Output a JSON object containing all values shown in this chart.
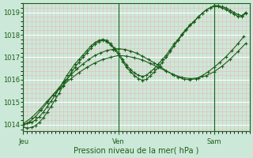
{
  "title": "",
  "xlabel": "Pression niveau de la mer( hPa )",
  "ylabel": "",
  "bg_color": "#cce8d8",
  "grid_color_major": "#ffffff",
  "grid_color_minor": "#b8d8c8",
  "line_color": "#1a5e1a",
  "ylim": [
    1013.7,
    1019.4
  ],
  "yticks": [
    1014,
    1015,
    1016,
    1017,
    1018,
    1019
  ],
  "day_labels": [
    "Jeu",
    "Ven",
    "Sam"
  ],
  "day_positions": [
    0,
    48,
    96
  ],
  "total_points": 114,
  "series": [
    {
      "x": [
        0,
        2,
        4,
        6,
        8,
        10,
        12,
        14,
        16,
        18,
        20,
        22,
        24,
        26,
        28,
        30,
        32,
        34,
        36,
        38,
        40,
        42,
        44,
        46,
        48,
        50,
        52,
        54,
        56,
        58,
        60,
        62,
        64,
        66,
        68,
        70,
        72,
        74,
        76,
        78,
        80,
        82,
        84,
        86,
        88,
        90,
        92,
        94,
        96,
        98,
        100,
        102,
        104,
        106,
        108,
        110,
        112
      ],
      "y": [
        1014.0,
        1014.05,
        1014.1,
        1014.2,
        1014.35,
        1014.55,
        1014.8,
        1015.05,
        1015.3,
        1015.6,
        1015.9,
        1016.2,
        1016.45,
        1016.7,
        1016.9,
        1017.1,
        1017.3,
        1017.5,
        1017.65,
        1017.75,
        1017.8,
        1017.75,
        1017.6,
        1017.4,
        1017.2,
        1016.9,
        1016.65,
        1016.45,
        1016.3,
        1016.2,
        1016.15,
        1016.2,
        1016.35,
        1016.5,
        1016.7,
        1016.9,
        1017.1,
        1017.35,
        1017.6,
        1017.8,
        1018.05,
        1018.25,
        1018.45,
        1018.6,
        1018.8,
        1018.95,
        1019.1,
        1019.2,
        1019.3,
        1019.3,
        1019.25,
        1019.2,
        1019.1,
        1019.0,
        1018.9,
        1018.85,
        1019.0
      ]
    },
    {
      "x": [
        0,
        2,
        4,
        6,
        8,
        10,
        12,
        14,
        16,
        18,
        20,
        22,
        24,
        26,
        28,
        30,
        32,
        34,
        36,
        38,
        40,
        42,
        44,
        46,
        48,
        50,
        52,
        54,
        56,
        58,
        60,
        62,
        64,
        66,
        68,
        70,
        72,
        74,
        76,
        78,
        80,
        82,
        84,
        86,
        88,
        90,
        92,
        94,
        96,
        98,
        100,
        102,
        104,
        106,
        108,
        110,
        112
      ],
      "y": [
        1013.9,
        1013.85,
        1013.88,
        1013.95,
        1014.1,
        1014.3,
        1014.55,
        1014.82,
        1015.1,
        1015.4,
        1015.72,
        1016.02,
        1016.3,
        1016.55,
        1016.78,
        1017.0,
        1017.2,
        1017.4,
        1017.58,
        1017.7,
        1017.75,
        1017.7,
        1017.55,
        1017.35,
        1017.1,
        1016.82,
        1016.55,
        1016.35,
        1016.18,
        1016.05,
        1015.98,
        1016.02,
        1016.18,
        1016.35,
        1016.55,
        1016.78,
        1017.0,
        1017.25,
        1017.52,
        1017.75,
        1018.0,
        1018.2,
        1018.42,
        1018.58,
        1018.78,
        1018.95,
        1019.1,
        1019.2,
        1019.25,
        1019.25,
        1019.2,
        1019.12,
        1019.02,
        1018.92,
        1018.82,
        1018.8,
        1018.95
      ]
    },
    {
      "x": [
        0,
        3,
        6,
        9,
        12,
        15,
        18,
        21,
        24,
        27,
        30,
        33,
        36,
        39,
        42,
        45,
        48,
        51,
        54,
        57,
        60,
        63,
        66,
        69,
        72,
        75,
        78,
        81,
        84,
        87,
        90,
        93,
        96,
        99,
        102,
        105,
        108,
        111
      ],
      "y": [
        1014.0,
        1014.12,
        1014.35,
        1014.65,
        1014.98,
        1015.32,
        1015.65,
        1015.95,
        1016.22,
        1016.48,
        1016.7,
        1016.9,
        1017.08,
        1017.2,
        1017.3,
        1017.35,
        1017.38,
        1017.35,
        1017.28,
        1017.18,
        1017.05,
        1016.9,
        1016.75,
        1016.58,
        1016.4,
        1016.25,
        1016.12,
        1016.02,
        1016.0,
        1016.05,
        1016.18,
        1016.35,
        1016.55,
        1016.78,
        1017.02,
        1017.3,
        1017.6,
        1017.92
      ]
    },
    {
      "x": [
        0,
        4,
        8,
        12,
        16,
        20,
        24,
        28,
        32,
        36,
        40,
        44,
        48,
        52,
        56,
        60,
        64,
        68,
        72,
        76,
        80,
        84,
        88,
        92,
        96,
        100,
        104,
        108,
        112
      ],
      "y": [
        1014.05,
        1014.3,
        1014.65,
        1015.05,
        1015.42,
        1015.75,
        1016.05,
        1016.32,
        1016.55,
        1016.75,
        1016.9,
        1017.0,
        1017.08,
        1017.05,
        1016.98,
        1016.88,
        1016.72,
        1016.55,
        1016.38,
        1016.22,
        1016.1,
        1016.05,
        1016.08,
        1016.18,
        1016.35,
        1016.6,
        1016.9,
        1017.25,
        1017.62
      ]
    }
  ]
}
